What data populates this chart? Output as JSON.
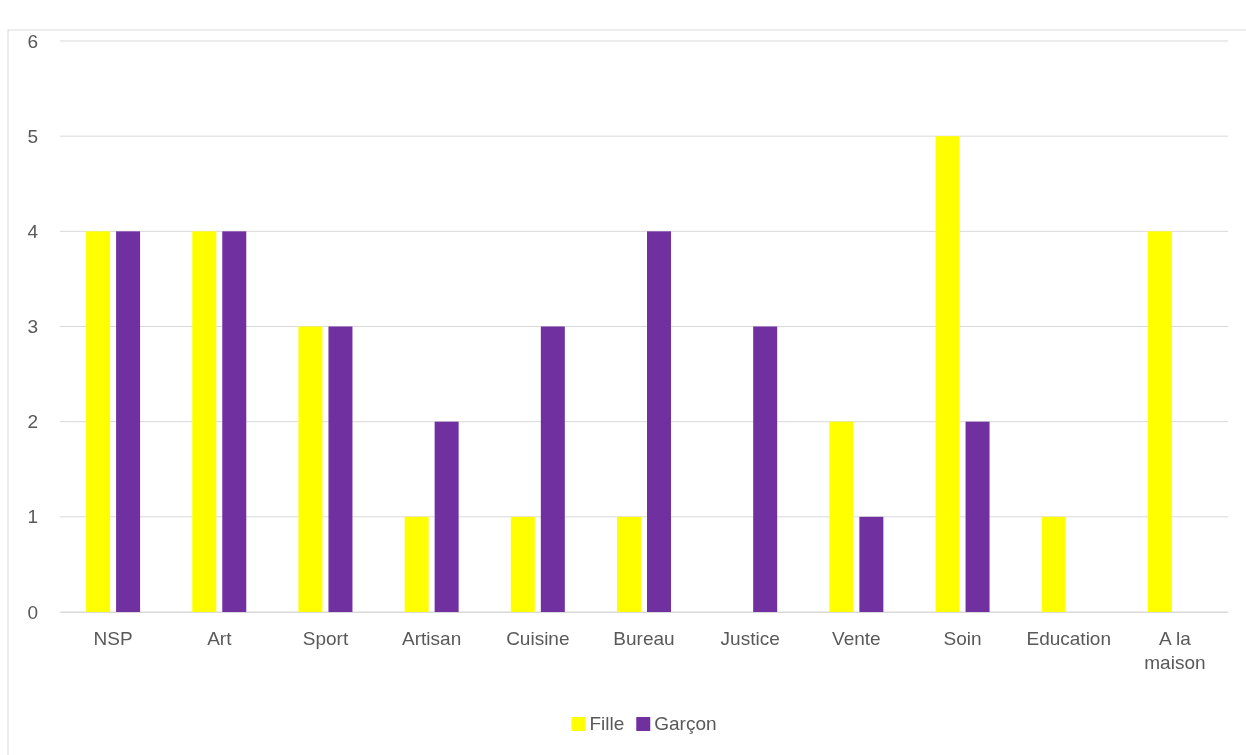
{
  "chart_data": {
    "type": "bar",
    "categories": [
      "NSP",
      "Art",
      "Sport",
      "Artisan",
      "Cuisine",
      "Bureau",
      "Justice",
      "Vente",
      "Soin",
      "Education",
      "A la maison"
    ],
    "series": [
      {
        "name": "Fille",
        "color": "#ffff00",
        "values": [
          4,
          4,
          3,
          1,
          1,
          1,
          0,
          2,
          5,
          1,
          4
        ]
      },
      {
        "name": "Garçon",
        "color": "#7030a0",
        "values": [
          4,
          4,
          3,
          2,
          3,
          4,
          3,
          1,
          2,
          0,
          0
        ]
      }
    ],
    "ylim": [
      0,
      6
    ],
    "yticks": [
      0,
      1,
      2,
      3,
      4,
      5,
      6
    ],
    "grid": "y",
    "legend": "bottom"
  }
}
